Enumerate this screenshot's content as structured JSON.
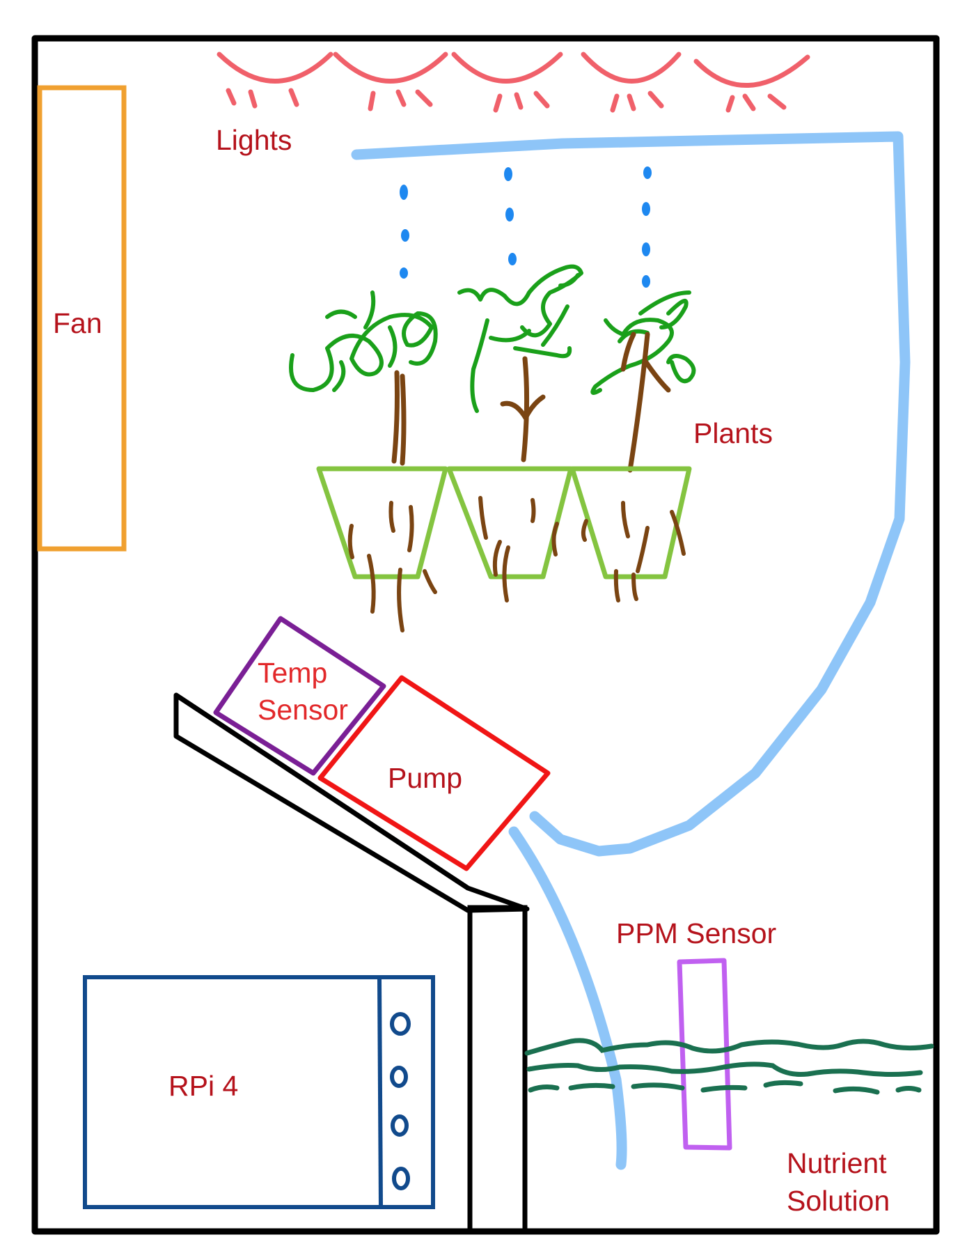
{
  "labels": {
    "fan": "Fan",
    "lights": "Lights",
    "plants": "Plants",
    "temp_sensor_line1": "Temp",
    "temp_sensor_line2": "Sensor",
    "pump": "Pump",
    "ppm_sensor": "PPM Sensor",
    "rpi": "RPi 4",
    "nutrient_line1": "Nutrient",
    "nutrient_line2": "Solution"
  },
  "colors": {
    "frame": "#000000",
    "fan": "#f0a030",
    "lights": "#f0606a",
    "pipe": "#8ec5f8",
    "drops": "#1e88f0",
    "leaves": "#1aa01a",
    "stems": "#7a4412",
    "pots": "#84c440",
    "temp_sensor": "#7a1f95",
    "pump": "#f01515",
    "ppm_sensor": "#c060f0",
    "water": "#1a7050",
    "rpi": "#114a8c",
    "label_text": "#b5121b"
  }
}
